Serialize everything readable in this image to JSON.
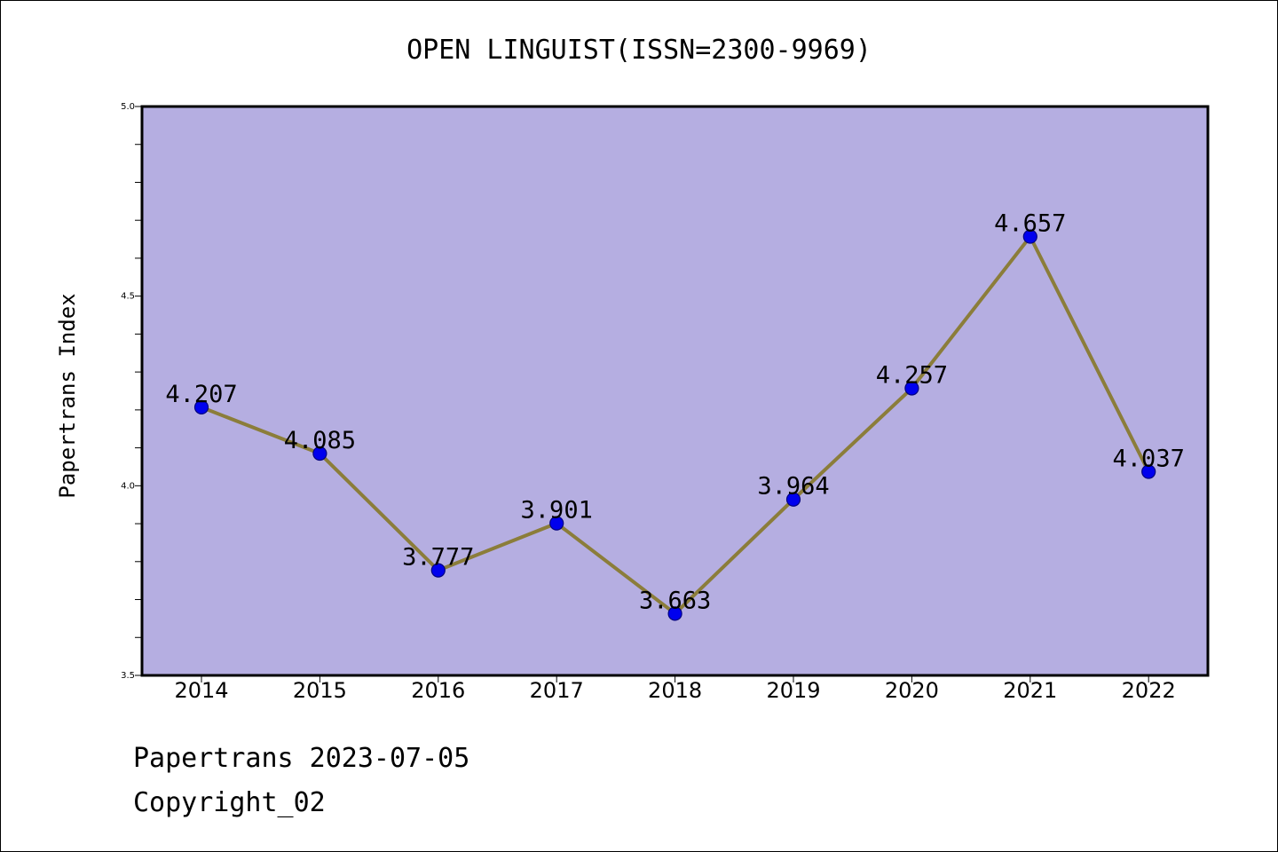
{
  "chart_data": {
    "type": "line",
    "title": "OPEN LINGUIST(ISSN=2300-9969)",
    "xlabel": "",
    "ylabel": "Papertrans Index",
    "categories": [
      "2014",
      "2015",
      "2016",
      "2017",
      "2018",
      "2019",
      "2020",
      "2021",
      "2022"
    ],
    "series": [
      {
        "values": [
          4.207,
          4.085,
          3.777,
          3.901,
          3.663,
          3.964,
          4.257,
          4.657,
          4.037
        ],
        "data_labels": [
          "4.207",
          "4.085",
          "3.777",
          "3.901",
          "3.663",
          "3.964",
          "4.257",
          "4.657",
          "4.037"
        ]
      }
    ],
    "ylim": [
      3.5,
      5.0
    ],
    "yticks": [
      "3.5",
      "4.0",
      "4.5",
      "5.0"
    ],
    "grid": false,
    "colors": {
      "plot_background": "#b5aee1",
      "line": "#8b7d3a",
      "marker": "#0000ee",
      "marker_edge": "#000080"
    }
  },
  "footer": {
    "line1": "Papertrans 2023-07-05",
    "line2": "Copyright_02"
  }
}
